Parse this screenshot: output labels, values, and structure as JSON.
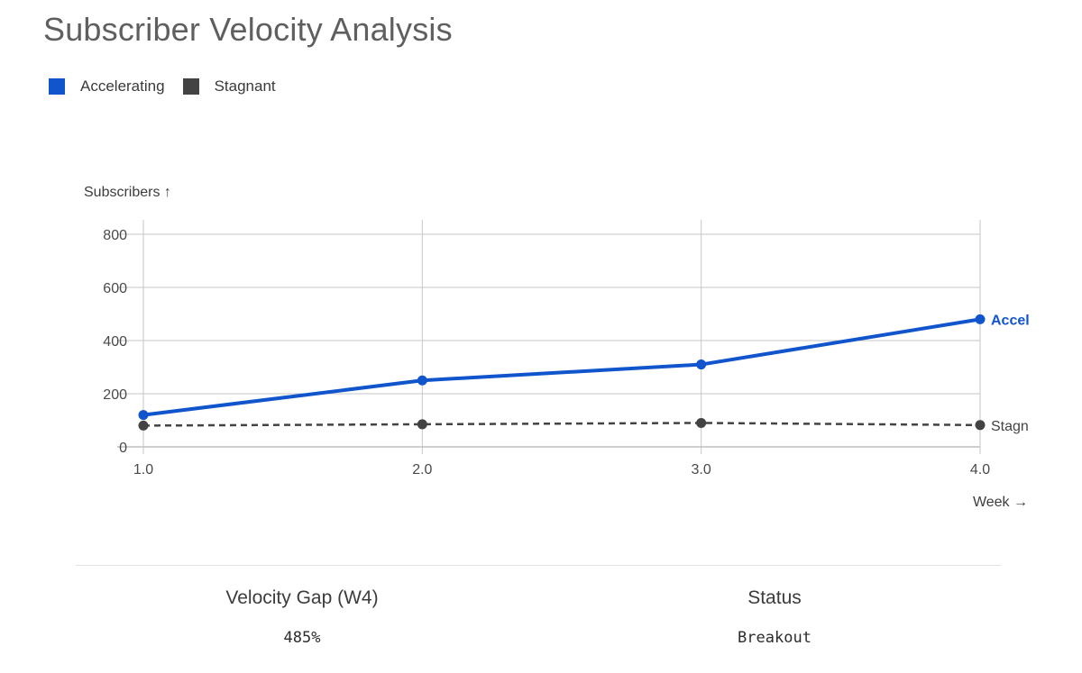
{
  "title": "Subscriber Velocity Analysis",
  "legend": [
    {
      "label": "Accelerating",
      "color": "#1155cc"
    },
    {
      "label": "Stagnant",
      "color": "#434343"
    }
  ],
  "chart_data": {
    "type": "line",
    "xlabel": "Week",
    "ylabel": "Subscribers",
    "xlabel_arrow": "→",
    "ylabel_arrow": "↑",
    "x": [
      1.0,
      2.0,
      3.0,
      4.0
    ],
    "x_ticks": [
      "1.0",
      "2.0",
      "3.0",
      "4.0"
    ],
    "y_ticks": [
      "0",
      "200",
      "400",
      "600",
      "800"
    ],
    "xlim": [
      1.0,
      4.0
    ],
    "ylim": [
      0,
      800
    ],
    "grid": true,
    "series": [
      {
        "name": "Accelerating",
        "values": [
          120,
          250,
          310,
          480
        ],
        "color": "#1155cc",
        "style": "solid",
        "end_label": "Accel"
      },
      {
        "name": "Stagnant",
        "values": [
          80,
          85,
          90,
          82
        ],
        "color": "#434343",
        "style": "dashed",
        "end_label": "Stagn"
      }
    ]
  },
  "stats": [
    {
      "label": "Velocity Gap (W4)",
      "value": "485%"
    },
    {
      "label": "Status",
      "value": "Breakout"
    }
  ]
}
